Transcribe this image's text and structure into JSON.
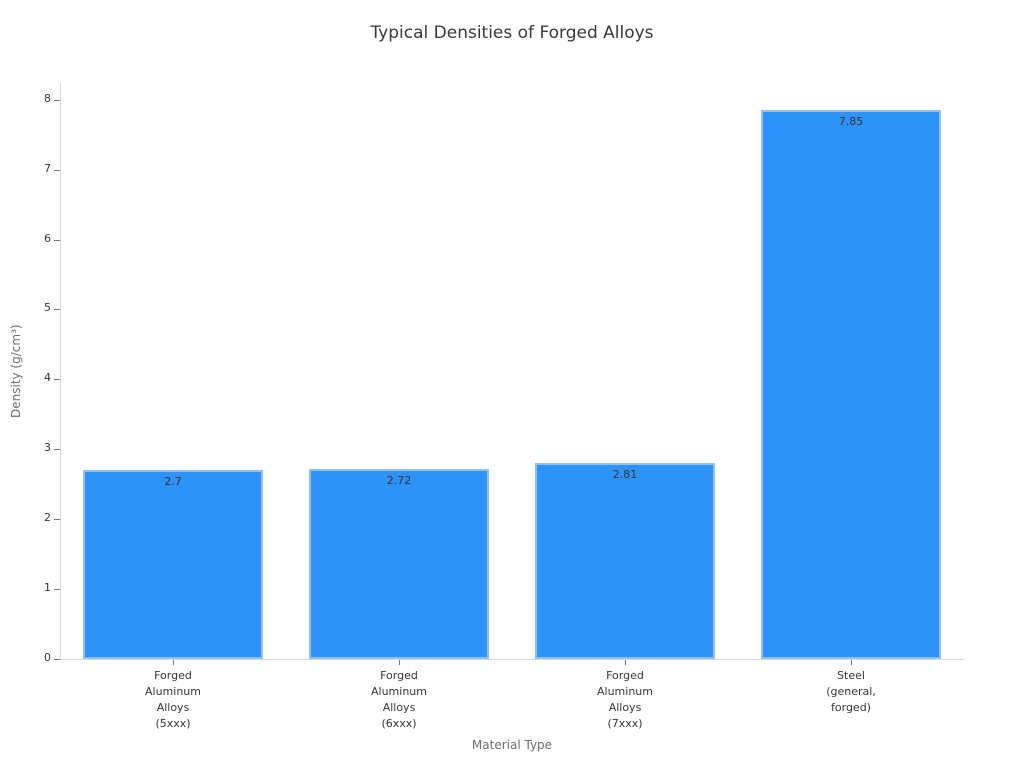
{
  "chart_data": {
    "type": "bar",
    "title": "Typical Densities of Forged Alloys",
    "xlabel": "Material Type",
    "ylabel": "Density (g/cm³)",
    "categories": [
      "Forged\nAluminum\nAlloys\n(5xxx)",
      "Forged\nAluminum\nAlloys\n(6xxx)",
      "Forged\nAluminum\nAlloys\n(7xxx)",
      "Steel\n(general,\nforged)"
    ],
    "values": [
      2.7,
      2.72,
      2.81,
      7.85
    ],
    "value_labels": [
      "2.7",
      "2.72",
      "2.81",
      "7.85"
    ],
    "ylim": [
      0,
      8.24
    ],
    "yticks": [
      0,
      1,
      2,
      3,
      4,
      5,
      6,
      7,
      8
    ],
    "grid": false,
    "legend": null,
    "bar_width_frac": 0.8,
    "style": {
      "bar_color": "#2e93f8",
      "bar_edge_color": "#8fc2f2",
      "spine_color": "#d9d9d9",
      "tick_color": "#757575",
      "tick_label_color": "#363636",
      "value_label_color": "#333333",
      "title_color": "#3a3a3a",
      "axis_title_color": "#6f6f6f"
    }
  }
}
